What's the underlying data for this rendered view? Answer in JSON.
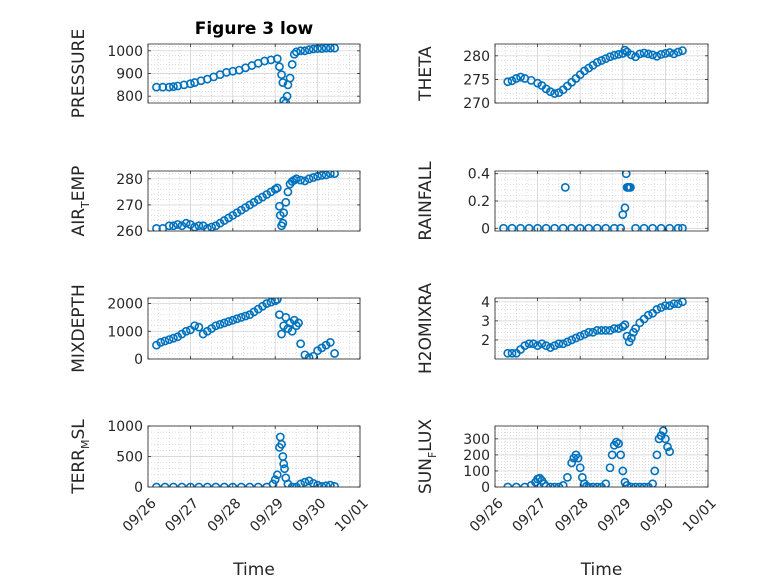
{
  "chart_data": [
    {
      "type": "scatter",
      "title": "Figure 3 low",
      "ylabel": "PRESSURE",
      "ylabel_parts": [],
      "xlabel": "",
      "ylim": [
        770,
        1030
      ],
      "yticks": [
        800,
        900,
        1000
      ],
      "xlim": [
        0,
        5
      ],
      "xticks": [],
      "grid": "on",
      "color": "#0072BD",
      "series": [
        {
          "x": [
            0.2,
            0.35,
            0.5,
            0.6,
            0.7,
            0.85,
            1.0,
            1.1,
            1.25,
            1.4,
            1.55,
            1.7,
            1.85,
            2.0,
            2.15,
            2.3,
            2.45,
            2.6,
            2.75,
            2.9,
            3.05,
            3.1,
            3.15,
            3.18,
            3.2,
            3.25,
            3.28,
            3.3,
            3.35,
            3.4,
            3.45,
            3.5,
            3.6,
            3.7,
            3.8,
            3.9,
            4.0,
            4.1,
            4.2,
            4.3,
            4.4
          ],
          "y": [
            840,
            840,
            840,
            842,
            845,
            850,
            855,
            860,
            868,
            875,
            885,
            895,
            905,
            910,
            915,
            925,
            935,
            945,
            955,
            960,
            965,
            930,
            895,
            860,
            780,
            770,
            800,
            850,
            880,
            940,
            985,
            995,
            1000,
            1000,
            1005,
            1008,
            1010,
            1010,
            1012,
            1012,
            1012
          ]
        }
      ]
    },
    {
      "type": "scatter",
      "title": "",
      "ylabel": "THETA",
      "ylabel_parts": [],
      "xlabel": "",
      "ylim": [
        270,
        282.5
      ],
      "yticks": [
        270,
        275,
        280
      ],
      "xlim": [
        0,
        5
      ],
      "xticks": [],
      "grid": "on",
      "color": "#0072BD",
      "series": [
        {
          "x": [
            0.3,
            0.4,
            0.5,
            0.6,
            0.7,
            0.85,
            1.0,
            1.1,
            1.2,
            1.3,
            1.4,
            1.5,
            1.6,
            1.7,
            1.8,
            1.9,
            2.0,
            2.1,
            2.2,
            2.3,
            2.4,
            2.5,
            2.6,
            2.7,
            2.8,
            2.9,
            3.0,
            3.05,
            3.1,
            3.2,
            3.3,
            3.4,
            3.5,
            3.6,
            3.7,
            3.8,
            3.9,
            4.0,
            4.1,
            4.2,
            4.3,
            4.4
          ],
          "y": [
            274.5,
            274.7,
            275.2,
            275.5,
            275.2,
            274.8,
            274.2,
            273.7,
            273.0,
            272.4,
            272.0,
            272.2,
            272.8,
            273.6,
            274.4,
            275.2,
            276.0,
            276.8,
            277.4,
            278.0,
            278.6,
            279.0,
            279.4,
            279.8,
            280.1,
            280.3,
            280.5,
            281.2,
            280.8,
            280.2,
            279.8,
            280.4,
            280.6,
            280.4,
            280.2,
            279.9,
            280.3,
            280.5,
            280.7,
            280.4,
            280.8,
            281.1
          ]
        }
      ]
    },
    {
      "type": "scatter",
      "title": "",
      "ylabel": "AIR_TEMP",
      "ylabel_parts": [
        "AIR",
        "T",
        "EMP"
      ],
      "xlabel": "",
      "ylim": [
        260,
        283
      ],
      "yticks": [
        260,
        270,
        280
      ],
      "xlim": [
        0,
        5
      ],
      "xticks": [],
      "grid": "on",
      "color": "#0072BD",
      "series": [
        {
          "x": [
            0.2,
            0.35,
            0.5,
            0.6,
            0.7,
            0.8,
            0.9,
            1.0,
            1.1,
            1.2,
            1.3,
            1.4,
            1.5,
            1.6,
            1.7,
            1.8,
            1.9,
            2.0,
            2.1,
            2.2,
            2.3,
            2.4,
            2.5,
            2.6,
            2.7,
            2.8,
            2.9,
            3.0,
            3.05,
            3.1,
            3.12,
            3.15,
            3.18,
            3.2,
            3.25,
            3.3,
            3.35,
            3.4,
            3.45,
            3.5,
            3.6,
            3.7,
            3.8,
            3.9,
            4.0,
            4.1,
            4.2,
            4.3,
            4.4
          ],
          "y": [
            261,
            261,
            262,
            262,
            262.5,
            262,
            263,
            262.5,
            261.5,
            262,
            262,
            261,
            261.5,
            262,
            263,
            264,
            265,
            266,
            267,
            268,
            269,
            270,
            271,
            272,
            273,
            274,
            275,
            276,
            276.5,
            269.5,
            266,
            262,
            263,
            267,
            271,
            275,
            278,
            279,
            279.5,
            280,
            279.5,
            279.2,
            280,
            280.5,
            281,
            281.3,
            281.5,
            282,
            282
          ]
        }
      ]
    },
    {
      "type": "scatter",
      "title": "",
      "ylabel": "RAINFALL",
      "ylabel_parts": [],
      "xlabel": "",
      "ylim": [
        -0.02,
        0.42
      ],
      "yticks": [
        0,
        0.2,
        0.4
      ],
      "xlim": [
        0,
        5
      ],
      "xticks": [],
      "grid": "on",
      "color": "#0072BD",
      "series": [
        {
          "x": [
            0.2,
            0.4,
            0.6,
            0.8,
            1.0,
            1.2,
            1.4,
            1.6,
            1.8,
            2.0,
            2.2,
            2.4,
            2.6,
            2.8,
            2.95,
            3.0,
            3.05,
            3.08,
            3.1,
            3.12,
            3.15,
            3.18,
            3.3,
            3.5,
            3.7,
            3.9,
            4.1,
            4.3,
            4.4,
            1.65
          ],
          "y": [
            0,
            0,
            0,
            0,
            0,
            0,
            0,
            0,
            0,
            0,
            0,
            0,
            0,
            0,
            0,
            0.1,
            0.15,
            0.4,
            0.3,
            0.3,
            0.3,
            0.3,
            0,
            0,
            0,
            0,
            0,
            0,
            0,
            0.3
          ]
        }
      ]
    },
    {
      "type": "scatter",
      "title": "",
      "ylabel": "MIXDEPTH",
      "ylabel_parts": [],
      "xlabel": "",
      "ylim": [
        0,
        2200
      ],
      "yticks": [
        0,
        1000,
        2000
      ],
      "xlim": [
        0,
        5
      ],
      "xticks": [],
      "grid": "on",
      "color": "#0072BD",
      "series": [
        {
          "x": [
            0.2,
            0.3,
            0.4,
            0.5,
            0.6,
            0.7,
            0.8,
            0.9,
            1.0,
            1.1,
            1.2,
            1.3,
            1.4,
            1.5,
            1.6,
            1.7,
            1.8,
            1.9,
            2.0,
            2.1,
            2.2,
            2.3,
            2.4,
            2.5,
            2.6,
            2.7,
            2.8,
            2.9,
            3.0,
            3.05,
            3.1,
            3.15,
            3.2,
            3.25,
            3.3,
            3.35,
            3.4,
            3.45,
            3.5,
            3.55,
            3.6,
            3.7,
            3.8,
            3.9,
            4.0,
            4.1,
            4.2,
            4.3,
            4.4
          ],
          "y": [
            500,
            600,
            650,
            700,
            750,
            800,
            900,
            1000,
            1050,
            1200,
            1150,
            900,
            1000,
            1100,
            1200,
            1250,
            1300,
            1350,
            1400,
            1450,
            1500,
            1550,
            1600,
            1700,
            1800,
            1900,
            2000,
            2050,
            2100,
            2150,
            1600,
            900,
            1200,
            1500,
            1100,
            1300,
            1000,
            1400,
            1200,
            1300,
            550,
            150,
            50,
            100,
            300,
            400,
            500,
            600,
            200
          ]
        }
      ]
    },
    {
      "type": "scatter",
      "title": "",
      "ylabel": "H2OMIXRA",
      "ylabel_parts": [],
      "xlabel": "",
      "ylim": [
        1.0,
        4.2
      ],
      "yticks": [
        2,
        3,
        4
      ],
      "xlim": [
        0,
        5
      ],
      "xticks": [],
      "grid": "on",
      "color": "#0072BD",
      "series": [
        {
          "x": [
            0.3,
            0.4,
            0.5,
            0.6,
            0.7,
            0.8,
            0.9,
            1.0,
            1.1,
            1.2,
            1.3,
            1.4,
            1.5,
            1.6,
            1.7,
            1.8,
            1.9,
            2.0,
            2.1,
            2.2,
            2.3,
            2.4,
            2.5,
            2.6,
            2.7,
            2.8,
            2.9,
            3.0,
            3.05,
            3.1,
            3.15,
            3.2,
            3.25,
            3.3,
            3.4,
            3.5,
            3.6,
            3.7,
            3.8,
            3.9,
            4.0,
            4.1,
            4.2,
            4.3,
            4.4
          ],
          "y": [
            1.3,
            1.3,
            1.3,
            1.5,
            1.7,
            1.8,
            1.8,
            1.7,
            1.8,
            1.7,
            1.6,
            1.7,
            1.8,
            1.8,
            1.9,
            2.0,
            2.1,
            2.2,
            2.3,
            2.4,
            2.4,
            2.5,
            2.5,
            2.5,
            2.5,
            2.6,
            2.6,
            2.7,
            2.8,
            2.2,
            1.9,
            2.1,
            2.4,
            2.6,
            2.9,
            3.1,
            3.3,
            3.4,
            3.6,
            3.7,
            3.8,
            3.8,
            3.9,
            3.9,
            4.0
          ]
        }
      ]
    },
    {
      "type": "scatter",
      "title": "",
      "ylabel": "TERR_MSL",
      "ylabel_parts": [
        "TERR",
        "M",
        "SL"
      ],
      "xlabel": "Time",
      "ylim": [
        0,
        1000
      ],
      "yticks": [
        0,
        500,
        1000
      ],
      "xlim": [
        0,
        5
      ],
      "xticks": [
        0,
        1,
        2,
        3,
        4,
        5
      ],
      "xticklabels": [
        "09/26",
        "09/27",
        "09/28",
        "09/29",
        "09/30",
        "10/01"
      ],
      "grid": "on",
      "color": "#0072BD",
      "series": [
        {
          "x": [
            0.2,
            0.4,
            0.6,
            0.8,
            1.0,
            1.2,
            1.4,
            1.6,
            1.8,
            2.0,
            2.2,
            2.4,
            2.6,
            2.8,
            2.95,
            3.0,
            3.05,
            3.1,
            3.12,
            3.15,
            3.18,
            3.2,
            3.22,
            3.25,
            3.3,
            3.4,
            3.5,
            3.6,
            3.7,
            3.8,
            3.9,
            4.0,
            4.1,
            4.2,
            4.3,
            4.4
          ],
          "y": [
            0,
            0,
            0,
            0,
            0,
            0,
            0,
            0,
            0,
            0,
            0,
            0,
            0,
            0,
            50,
            120,
            200,
            650,
            820,
            700,
            500,
            380,
            300,
            150,
            50,
            0,
            0,
            50,
            80,
            100,
            60,
            30,
            10,
            20,
            30,
            10
          ]
        }
      ]
    },
    {
      "type": "scatter",
      "title": "",
      "ylabel": "SUN_FLUX",
      "ylabel_parts": [
        "SUN",
        "F",
        "LUX"
      ],
      "xlabel": "Time",
      "ylim": [
        0,
        380
      ],
      "yticks": [
        0,
        100,
        200,
        300
      ],
      "xlim": [
        0,
        5
      ],
      "xticks": [
        0,
        1,
        2,
        3,
        4,
        5
      ],
      "xticklabels": [
        "09/26",
        "09/27",
        "09/28",
        "09/29",
        "09/30",
        "10/01"
      ],
      "grid": "on",
      "color": "#0072BD",
      "series": [
        {
          "x": [
            0.3,
            0.5,
            0.7,
            0.85,
            0.95,
            1.0,
            1.05,
            1.1,
            1.15,
            1.2,
            1.3,
            1.4,
            1.5,
            1.6,
            1.7,
            1.8,
            1.85,
            1.9,
            1.95,
            2.0,
            2.05,
            2.1,
            2.15,
            2.2,
            2.3,
            2.4,
            2.5,
            2.6,
            2.7,
            2.75,
            2.8,
            2.85,
            2.9,
            2.95,
            3.0,
            3.05,
            3.1,
            3.2,
            3.3,
            3.4,
            3.5,
            3.6,
            3.7,
            3.75,
            3.8,
            3.85,
            3.9,
            3.95,
            4.0,
            4.05,
            4.1
          ],
          "y": [
            0,
            0,
            0,
            10,
            30,
            50,
            55,
            40,
            20,
            5,
            0,
            0,
            0,
            10,
            60,
            150,
            180,
            200,
            180,
            120,
            60,
            20,
            5,
            0,
            0,
            0,
            0,
            20,
            120,
            200,
            260,
            280,
            270,
            200,
            100,
            30,
            10,
            0,
            0,
            0,
            0,
            0,
            20,
            100,
            200,
            300,
            320,
            350,
            300,
            250,
            220
          ]
        }
      ]
    }
  ]
}
